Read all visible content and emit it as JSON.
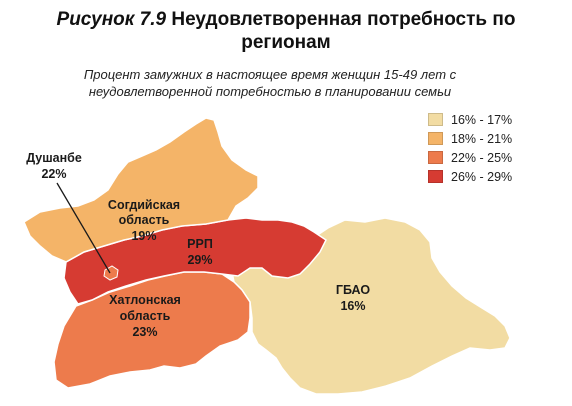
{
  "title": {
    "prefix": "Рисунок 7.9",
    "line1": "Неудовлетворенная потребность по",
    "line2": "регионам"
  },
  "subtitle": {
    "line1": "Процент замужних в настоящее время женщин 15-49 лет с",
    "line2": "неудовлетворенной потребностью в планировании семьи"
  },
  "legend": [
    {
      "label": "16% - 17%",
      "color": "#f2dca3"
    },
    {
      "label": "18% - 21%",
      "color": "#f4b468"
    },
    {
      "label": "22% - 25%",
      "color": "#ed7b4c"
    },
    {
      "label": "26% - 29%",
      "color": "#d63b32"
    }
  ],
  "regions": {
    "sogd": {
      "name_line1": "Согдийская",
      "name_line2": "область",
      "value": "19%",
      "color": "#f4b468"
    },
    "rrp": {
      "name": "РРП",
      "value": "29%",
      "color": "#d63b32"
    },
    "dushanbe": {
      "name": "Душанбе",
      "value": "22%",
      "color": "#ed7b4c"
    },
    "khatlon": {
      "name_line1": "Хатлонская",
      "name_line2": "область",
      "value": "23%",
      "color": "#ed7b4c"
    },
    "gbao": {
      "name": "ГБАО",
      "value": "16%",
      "color": "#f2dca3"
    }
  }
}
